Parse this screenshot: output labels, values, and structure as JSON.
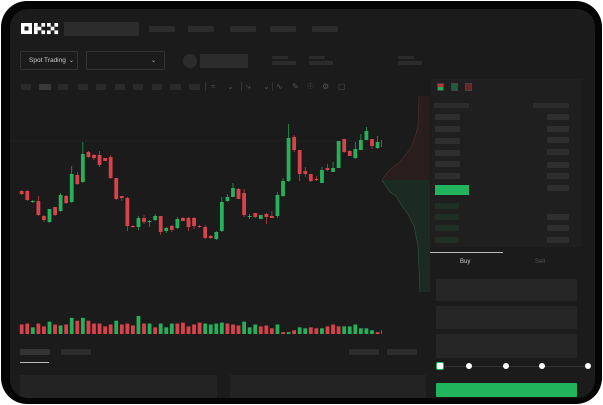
{
  "header": {
    "logo": "OKX",
    "market_selector": "Spot Trading"
  },
  "order_panel": {
    "tabs": [
      "Buy",
      "Sell"
    ],
    "active_tab": "Buy",
    "slider_stops": 5,
    "slider_value_percent": 0
  },
  "toolbar": {
    "icons": [
      "indicator-icon",
      "chevron-down-icon",
      "drawing-icon",
      "chevron-down-icon",
      "line-icon",
      "ruler-icon",
      "camera-icon",
      "settings-icon",
      "fullscreen-icon"
    ]
  },
  "orderbook": {
    "view_icons": [
      "book-both-icon",
      "book-bids-icon",
      "book-asks-icon"
    ]
  },
  "colors": {
    "up": "#26b05a",
    "down": "#d8424a",
    "background": "#1b1b1b",
    "accent": "#22b45c"
  },
  "chart_data": {
    "type": "candlestick",
    "ohlc": [
      [
        68,
        65,
        69,
        64
      ],
      [
        68,
        59,
        69,
        58
      ],
      [
        57,
        58,
        59,
        56
      ],
      [
        58,
        44,
        63,
        43
      ],
      [
        43,
        39,
        44,
        37
      ],
      [
        37,
        50,
        50,
        36
      ],
      [
        52,
        44,
        52,
        43
      ],
      [
        48,
        64,
        66,
        47
      ],
      [
        63,
        56,
        64,
        55
      ],
      [
        57,
        85,
        93,
        56
      ],
      [
        84,
        75,
        87,
        74
      ],
      [
        77,
        105,
        117,
        76
      ],
      [
        107,
        102,
        108,
        101
      ],
      [
        104,
        101,
        105,
        99
      ],
      [
        104,
        94,
        108,
        92
      ],
      [
        101,
        98,
        101,
        98
      ],
      [
        102,
        81,
        104,
        80
      ],
      [
        81,
        60,
        81,
        59
      ],
      [
        63,
        61,
        63,
        58
      ],
      [
        61,
        33,
        62,
        28
      ],
      [
        33,
        32,
        34,
        31
      ],
      [
        32,
        41,
        43,
        29
      ],
      [
        41,
        37,
        44,
        35
      ],
      [
        37,
        38,
        39,
        32
      ],
      [
        39,
        43,
        45,
        38
      ],
      [
        43,
        27,
        43,
        24
      ],
      [
        28,
        31,
        32,
        26
      ],
      [
        33,
        29,
        34,
        27
      ],
      [
        31,
        40,
        42,
        30
      ],
      [
        41,
        38,
        42,
        38
      ],
      [
        41,
        32,
        42,
        28
      ],
      [
        41,
        33,
        42,
        30
      ],
      [
        33,
        32,
        34,
        31
      ],
      [
        32,
        21,
        34,
        20
      ],
      [
        23,
        21,
        24,
        20
      ],
      [
        20,
        27,
        28,
        19
      ],
      [
        28,
        57,
        62,
        27
      ],
      [
        58,
        62,
        65,
        57
      ],
      [
        62,
        71,
        76,
        62
      ],
      [
        70,
        60,
        71,
        60
      ],
      [
        66,
        44,
        70,
        42
      ],
      [
        42,
        43,
        45,
        40
      ],
      [
        46,
        42,
        46,
        41
      ],
      [
        40,
        44,
        44,
        40
      ],
      [
        45,
        42,
        46,
        35
      ],
      [
        43,
        41,
        48,
        41
      ],
      [
        43,
        64,
        67,
        41
      ],
      [
        63,
        78,
        81,
        62
      ],
      [
        78,
        121,
        135,
        77
      ],
      [
        122,
        109,
        124,
        107
      ],
      [
        109,
        85,
        109,
        78
      ],
      [
        88,
        85,
        92,
        82
      ],
      [
        85,
        78,
        85,
        77
      ],
      [
        80,
        79,
        83,
        78
      ],
      [
        76,
        89,
        92,
        76
      ],
      [
        91,
        89,
        95,
        88
      ],
      [
        87,
        91,
        97,
        87
      ],
      [
        91,
        118,
        118,
        91
      ],
      [
        120,
        107,
        120,
        106
      ],
      [
        108,
        103,
        109,
        103
      ],
      [
        101,
        110,
        117,
        100
      ],
      [
        109,
        119,
        125,
        109
      ],
      [
        119,
        128,
        132,
        119
      ],
      [
        120,
        113,
        120,
        110
      ],
      [
        111,
        117,
        123,
        110
      ],
      [
        119,
        112,
        120,
        111
      ],
      [
        113,
        117,
        125,
        112
      ]
    ],
    "volume": [
      10,
      11,
      7,
      11,
      8,
      13,
      10,
      9,
      10,
      17,
      14,
      17,
      14,
      11,
      11,
      8,
      10,
      14,
      10,
      11,
      9,
      19,
      11,
      11,
      7,
      11,
      7,
      11,
      11,
      12,
      8,
      10,
      12,
      11,
      10,
      11,
      12,
      11,
      10,
      9,
      13,
      7,
      10,
      8,
      9,
      6,
      10,
      2,
      2,
      4,
      7,
      6,
      7,
      6,
      6,
      8,
      10,
      8,
      8,
      8,
      10,
      6,
      6,
      4,
      2,
      4,
      3
    ],
    "volume_colors": [
      "d",
      "d",
      "u",
      "d",
      "d",
      "u",
      "d",
      "u",
      "d",
      "u",
      "d",
      "u",
      "d",
      "d",
      "d",
      "d",
      "d",
      "u",
      "d",
      "d",
      "d",
      "u",
      "d",
      "u",
      "d",
      "u",
      "u",
      "u",
      "d",
      "d",
      "d",
      "d",
      "d",
      "u",
      "u",
      "u",
      "u",
      "d",
      "d",
      "d",
      "u",
      "u",
      "u",
      "d",
      "d",
      "d",
      "u",
      "d",
      "u",
      "d",
      "u",
      "u",
      "d",
      "d",
      "u",
      "d",
      "d",
      "d",
      "u",
      "u",
      "u",
      "u",
      "u",
      "u",
      "d",
      "u",
      "u"
    ]
  }
}
